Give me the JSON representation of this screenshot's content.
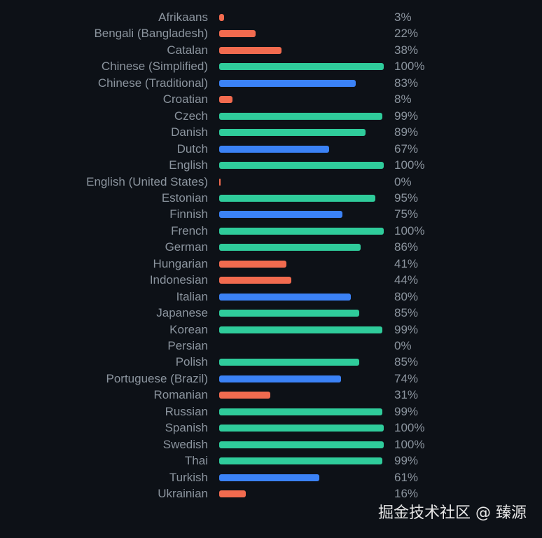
{
  "chart_data": {
    "type": "bar",
    "orientation": "horizontal",
    "value_unit": "%",
    "colors": {
      "high": "#2fcc9b",
      "mid": "#3b82f6",
      "low": "#f26b4f"
    },
    "items": [
      {
        "category": "Afrikaans",
        "value": 3,
        "label": "3%",
        "tier": "low"
      },
      {
        "category": "Bengali (Bangladesh)",
        "value": 22,
        "label": "22%",
        "tier": "low"
      },
      {
        "category": "Catalan",
        "value": 38,
        "label": "38%",
        "tier": "low"
      },
      {
        "category": "Chinese (Simplified)",
        "value": 100,
        "label": "100%",
        "tier": "high"
      },
      {
        "category": "Chinese (Traditional)",
        "value": 83,
        "label": "83%",
        "tier": "mid"
      },
      {
        "category": "Croatian",
        "value": 8,
        "label": "8%",
        "tier": "low"
      },
      {
        "category": "Czech",
        "value": 99,
        "label": "99%",
        "tier": "high"
      },
      {
        "category": "Danish",
        "value": 89,
        "label": "89%",
        "tier": "high"
      },
      {
        "category": "Dutch",
        "value": 67,
        "label": "67%",
        "tier": "mid"
      },
      {
        "category": "English",
        "value": 100,
        "label": "100%",
        "tier": "high"
      },
      {
        "category": "English (United States)",
        "value": 0,
        "label": "0%",
        "tier": "low"
      },
      {
        "category": "Estonian",
        "value": 95,
        "label": "95%",
        "tier": "high"
      },
      {
        "category": "Finnish",
        "value": 75,
        "label": "75%",
        "tier": "mid"
      },
      {
        "category": "French",
        "value": 100,
        "label": "100%",
        "tier": "high"
      },
      {
        "category": "German",
        "value": 86,
        "label": "86%",
        "tier": "high"
      },
      {
        "category": "Hungarian",
        "value": 41,
        "label": "41%",
        "tier": "low"
      },
      {
        "category": "Indonesian",
        "value": 44,
        "label": "44%",
        "tier": "low"
      },
      {
        "category": "Italian",
        "value": 80,
        "label": "80%",
        "tier": "mid"
      },
      {
        "category": "Japanese",
        "value": 85,
        "label": "85%",
        "tier": "high"
      },
      {
        "category": "Korean",
        "value": 99,
        "label": "99%",
        "tier": "high"
      },
      {
        "category": "Persian",
        "value": 0,
        "label": "0%",
        "tier": "none"
      },
      {
        "category": "Polish",
        "value": 85,
        "label": "85%",
        "tier": "high"
      },
      {
        "category": "Portuguese (Brazil)",
        "value": 74,
        "label": "74%",
        "tier": "mid"
      },
      {
        "category": "Romanian",
        "value": 31,
        "label": "31%",
        "tier": "low"
      },
      {
        "category": "Russian",
        "value": 99,
        "label": "99%",
        "tier": "high"
      },
      {
        "category": "Spanish",
        "value": 100,
        "label": "100%",
        "tier": "high"
      },
      {
        "category": "Swedish",
        "value": 100,
        "label": "100%",
        "tier": "high"
      },
      {
        "category": "Thai",
        "value": 99,
        "label": "99%",
        "tier": "high"
      },
      {
        "category": "Turkish",
        "value": 61,
        "label": "61%",
        "tier": "mid"
      },
      {
        "category": "Ukrainian",
        "value": 16,
        "label": "16%",
        "tier": "low"
      }
    ],
    "xlim": [
      0,
      100
    ],
    "title": "",
    "xlabel": "",
    "ylabel": "",
    "grid": false,
    "legend": "none"
  },
  "watermark": "掘金技术社区 @ 臻源"
}
